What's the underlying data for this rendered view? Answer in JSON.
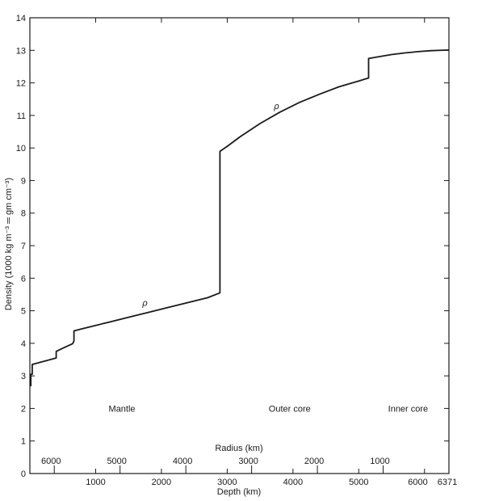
{
  "chart_data": {
    "type": "line",
    "title": "",
    "xlabel": "Depth (km)",
    "ylabel": "Density (1000 kg m⁻³ ═ gm cm⁻³)",
    "secondary_xlabel": "Radius (km)",
    "xlim": [
      0,
      6371
    ],
    "ylim": [
      0,
      14
    ],
    "grid": false,
    "x_ticks": [
      {
        "value": 1000,
        "label": "1000"
      },
      {
        "value": 2000,
        "label": "2000"
      },
      {
        "value": 3000,
        "label": "3000"
      },
      {
        "value": 4000,
        "label": "4000"
      },
      {
        "value": 5000,
        "label": "5000"
      },
      {
        "value": 6000,
        "label": "6000"
      },
      {
        "value": 6371,
        "label": "6371"
      }
    ],
    "y_ticks": [
      0,
      1,
      2,
      3,
      4,
      5,
      6,
      7,
      8,
      9,
      10,
      11,
      12,
      13,
      14
    ],
    "radius_ticks": [
      {
        "depth": 371,
        "label": "6000"
      },
      {
        "depth": 1371,
        "label": "5000"
      },
      {
        "depth": 2371,
        "label": "4000"
      },
      {
        "depth": 3371,
        "label": "3000"
      },
      {
        "depth": 4371,
        "label": "2000"
      },
      {
        "depth": 5371,
        "label": "1000"
      }
    ],
    "regions": [
      {
        "label": "Mantle",
        "depth": 1400,
        "density": 1.9
      },
      {
        "label": "Outer core",
        "depth": 3950,
        "density": 1.9
      },
      {
        "label": "Inner core",
        "depth": 5750,
        "density": 1.9
      }
    ],
    "annotations": [
      {
        "text": "ρ",
        "depth": 1750,
        "density": 5.15
      },
      {
        "text": "ρ",
        "depth": 3750,
        "density": 11.2
      }
    ],
    "series": [
      {
        "x": [
          0,
          15,
          15,
          35,
          35,
          220,
          400,
          400,
          500,
          650,
          670,
          670,
          800,
          1000,
          1200,
          1500,
          1800,
          2100,
          2400,
          2700,
          2890,
          2890,
          3000,
          3200,
          3500,
          3800,
          4100,
          4400,
          4700,
          5000,
          5150,
          5150,
          5300,
          5500,
          5700,
          5900,
          6100,
          6371
        ],
        "y": [
          2.7,
          2.7,
          3.05,
          3.05,
          3.35,
          3.45,
          3.55,
          3.75,
          3.85,
          3.99,
          4.07,
          4.38,
          4.45,
          4.55,
          4.65,
          4.8,
          4.95,
          5.1,
          5.25,
          5.4,
          5.55,
          9.9,
          10.05,
          10.35,
          10.75,
          11.1,
          11.4,
          11.65,
          11.88,
          12.06,
          12.15,
          12.75,
          12.8,
          12.87,
          12.92,
          12.96,
          12.99,
          13.01
        ]
      }
    ]
  }
}
